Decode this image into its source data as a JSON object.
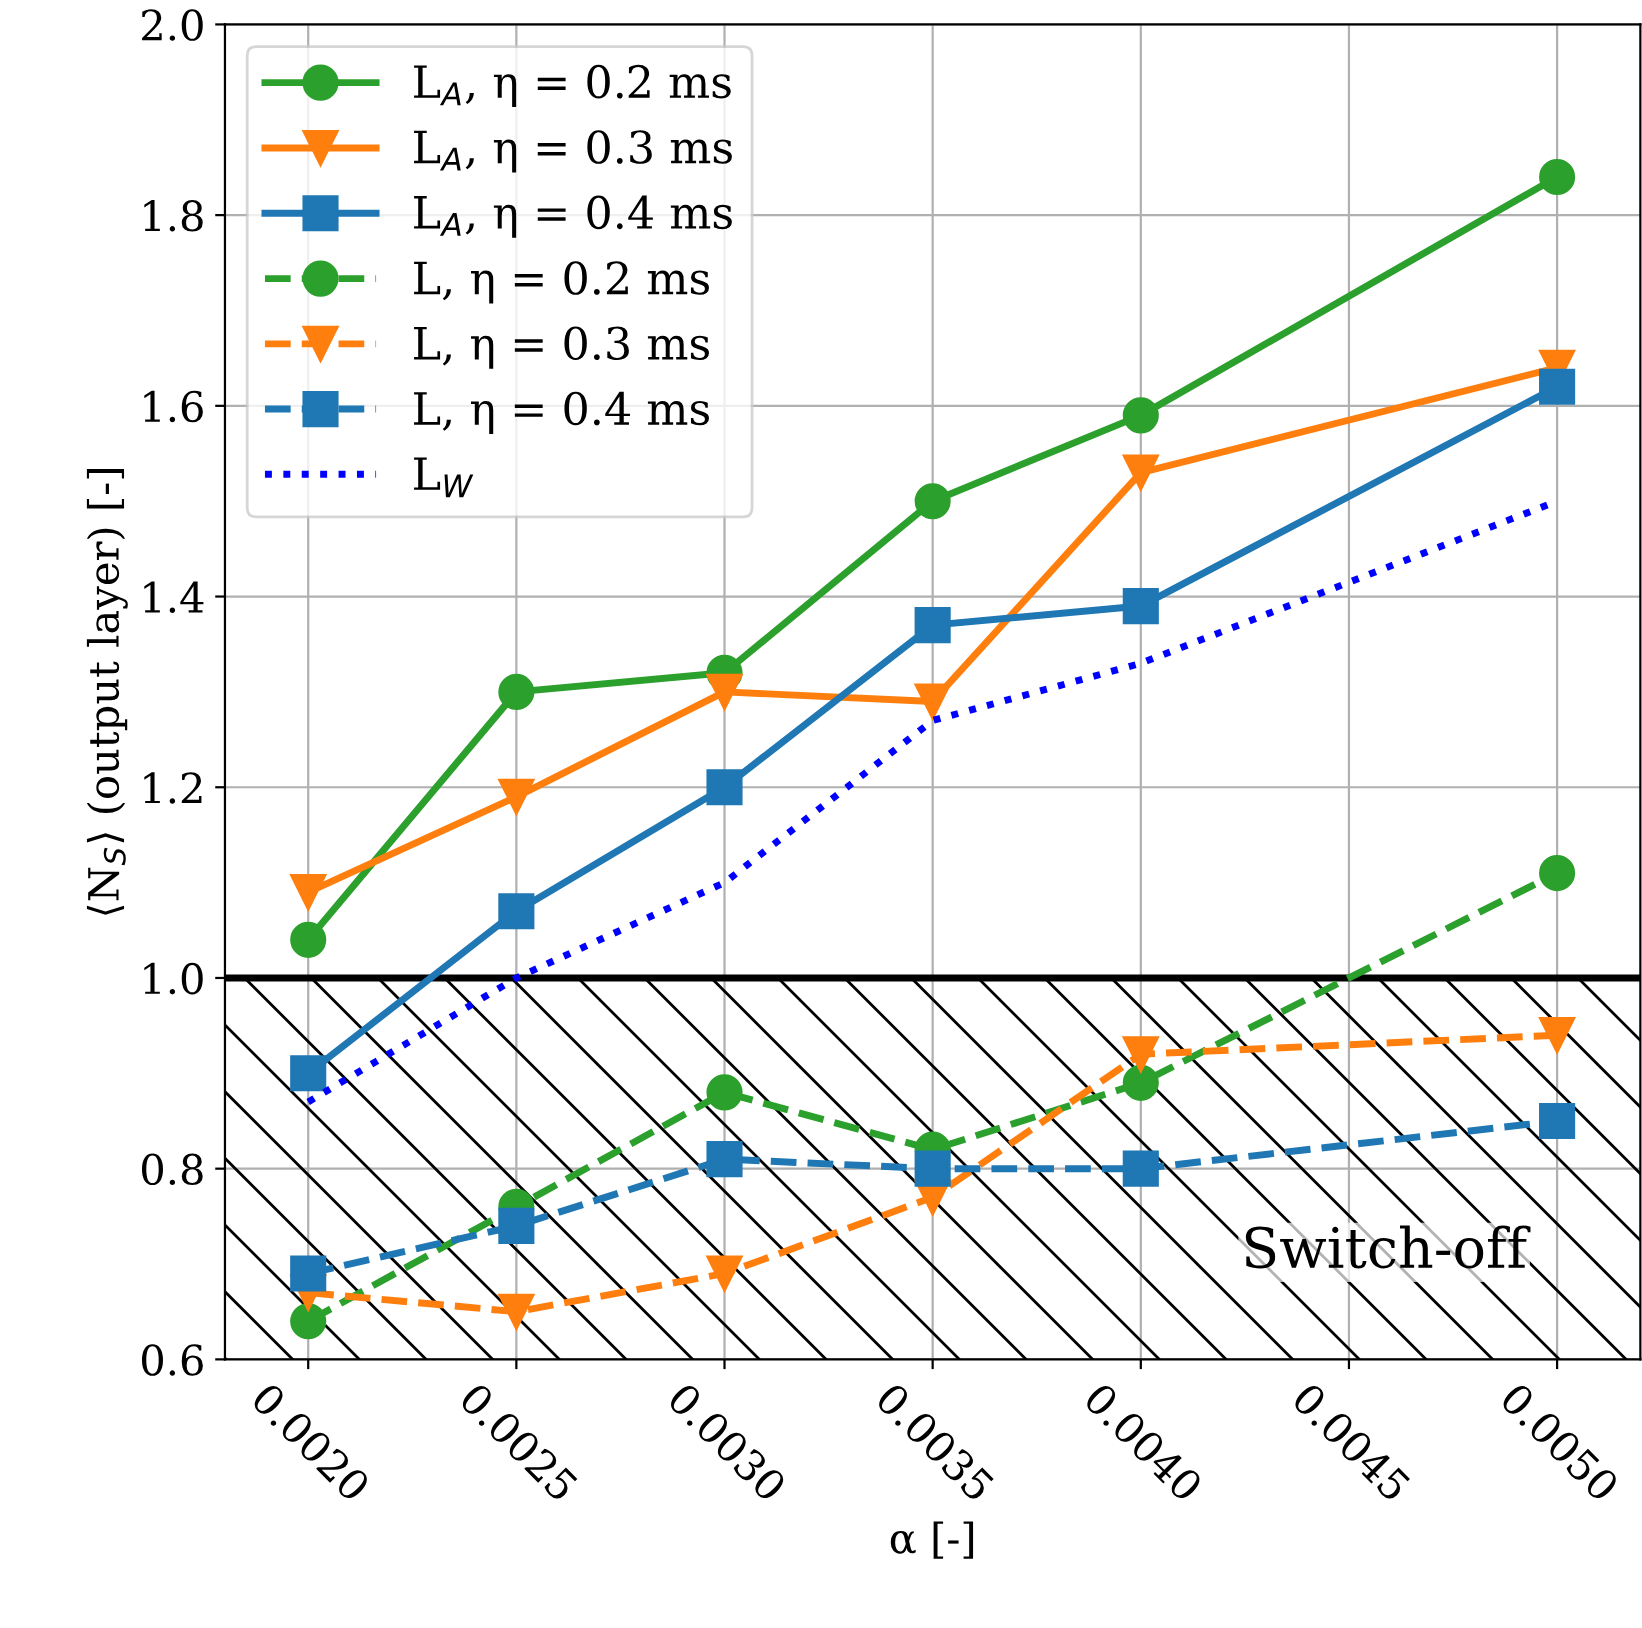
{
  "chart_data": {
    "type": "line",
    "xlabel": "α [-]",
    "ylabel": "⟨N$_{S}$⟩ (output layer) [-]",
    "x": [
      0.002,
      0.0025,
      0.003,
      0.0035,
      0.004,
      0.005
    ],
    "series": [
      {
        "name": "L$_{A}$, η = 0.2 ms",
        "color": "#2ca02c",
        "marker": "circle",
        "line_style": "solid",
        "values": [
          1.04,
          1.3,
          1.32,
          1.5,
          1.59,
          1.84
        ]
      },
      {
        "name": "L$_{A}$, η = 0.3 ms",
        "color": "#ff7f0e",
        "marker": "triangle",
        "line_style": "solid",
        "values": [
          1.09,
          1.19,
          1.3,
          1.29,
          1.53,
          1.64
        ]
      },
      {
        "name": "L$_{A}$, η = 0.4 ms",
        "color": "#1f77b4",
        "marker": "square",
        "line_style": "solid",
        "values": [
          0.9,
          1.07,
          1.2,
          1.37,
          1.39,
          1.62
        ]
      },
      {
        "name": "L, η = 0.2 ms",
        "color": "#2ca02c",
        "marker": "circle",
        "line_style": "dashed",
        "values": [
          0.64,
          0.76,
          0.88,
          0.82,
          0.89,
          1.11
        ]
      },
      {
        "name": "L, η = 0.3 ms",
        "color": "#ff7f0e",
        "marker": "triangle",
        "line_style": "dashed",
        "values": [
          0.67,
          0.65,
          0.69,
          0.77,
          0.92,
          0.94
        ]
      },
      {
        "name": "L, η = 0.4 ms",
        "color": "#1f77b4",
        "marker": "square",
        "line_style": "dashed",
        "values": [
          0.69,
          0.74,
          0.81,
          0.8,
          0.8,
          0.85
        ]
      },
      {
        "name": "L$_{W}$",
        "color": "#0000ff",
        "marker": "none",
        "line_style": "dotted",
        "values": [
          0.87,
          1.0,
          1.1,
          1.27,
          1.33,
          1.5
        ]
      }
    ],
    "xlim": [
      0.0018,
      0.0052
    ],
    "ylim": [
      0.6,
      2.0
    ],
    "xticks": [
      {
        "value": 0.002,
        "label": "0.0020"
      },
      {
        "value": 0.0025,
        "label": "0.0025"
      },
      {
        "value": 0.003,
        "label": "0.0030"
      },
      {
        "value": 0.0035,
        "label": "0.0035"
      },
      {
        "value": 0.004,
        "label": "0.0040"
      },
      {
        "value": 0.0045,
        "label": "0.0045"
      },
      {
        "value": 0.005,
        "label": "0.0050"
      }
    ],
    "yticks": [
      0.6,
      0.8,
      {
        "value": 1.0,
        "label": "1.0"
      },
      1.2,
      1.4,
      1.6,
      1.8,
      {
        "value": 2.0,
        "label": "2.0"
      }
    ],
    "ref_lines": [
      {
        "axis": "y",
        "value": 1.0,
        "color": "#000000"
      }
    ],
    "bands": [
      {
        "axis": "y",
        "from": 0.6,
        "to": 1.0,
        "label": "Switch-off",
        "color": "#000000"
      }
    ],
    "grid": true,
    "legend": "top left"
  }
}
